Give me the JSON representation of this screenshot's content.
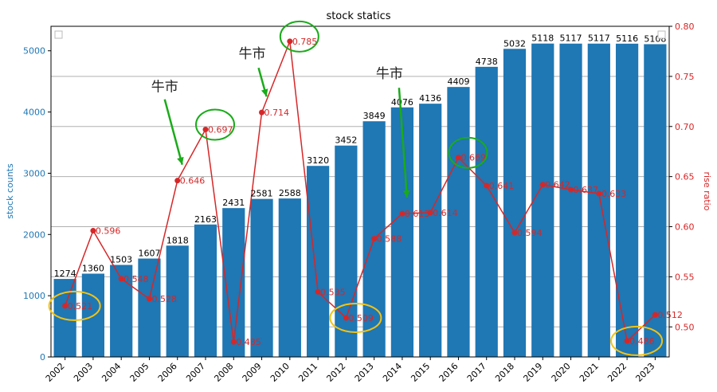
{
  "chart_data": {
    "type": "bar+line",
    "title": "stock statics",
    "categories": [
      "2002",
      "2003",
      "2004",
      "2005",
      "2006",
      "2007",
      "2008",
      "2009",
      "2010",
      "2011",
      "2012",
      "2013",
      "2014",
      "2015",
      "2016",
      "2017",
      "2018",
      "2019",
      "2020",
      "2021",
      "2022",
      "2023"
    ],
    "bar_series": {
      "values": [
        1274,
        1360,
        1503,
        1607,
        1818,
        2163,
        2431,
        2581,
        2588,
        3120,
        3452,
        3849,
        4076,
        4136,
        4409,
        4738,
        5032,
        5118,
        5117,
        5117,
        5116,
        5108
      ],
      "labels": [
        "1274",
        "1360",
        "1503",
        "1607",
        "1818",
        "2163",
        "2431",
        "2581",
        "2588",
        "3120",
        "3452",
        "3849",
        "4076",
        "4136",
        "4409",
        "4738",
        "5032",
        "5118",
        "5117",
        "5117",
        "5116",
        "5108"
      ],
      "color": "#1f77b4"
    },
    "line_series": {
      "values": [
        0.521,
        0.596,
        0.548,
        0.528,
        0.646,
        0.697,
        0.485,
        0.714,
        0.785,
        0.535,
        0.509,
        0.588,
        0.613,
        0.614,
        0.669,
        0.641,
        0.594,
        0.642,
        0.637,
        0.633,
        0.486,
        0.512
      ],
      "labels": [
        "0.521",
        "0.596",
        "0.548",
        "0.528",
        "0.646",
        "0.697",
        "0.485",
        "0.714",
        "0.785",
        "0.535",
        "0.509",
        "0.588",
        "0.613",
        "0.614",
        "0.669",
        "0.641",
        "0.594",
        "0.642",
        "0.637",
        "0.633",
        "0.486",
        "0.512"
      ],
      "color": "#d62728"
    },
    "ylabel_left": "stock counts",
    "ylabel_right": "rise ratio",
    "ylim_left": [
      0,
      5400
    ],
    "ylim_right": [
      0.47,
      0.8
    ],
    "yticks_left": [
      "0",
      "1000",
      "2000",
      "3000",
      "4000",
      "5000"
    ],
    "yticks_right": [
      "0.50",
      "0.55",
      "0.60",
      "0.65",
      "0.70",
      "0.75",
      "0.80"
    ],
    "grid": "horizontal",
    "annotations": {
      "bull_label": "牛市",
      "bull_years": [
        "2006",
        "2009",
        "2014"
      ],
      "green_circled_years": [
        "2007",
        "2010",
        "2016"
      ],
      "yellow_circled_years": [
        "2002",
        "2012",
        "2022"
      ]
    }
  }
}
